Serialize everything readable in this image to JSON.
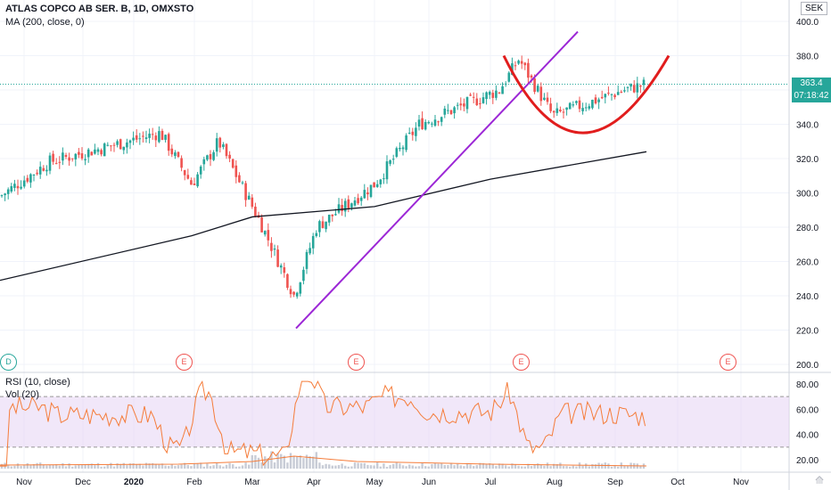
{
  "header": {
    "symbol": "ATLAS COPCO AB SER. B, 1D, OMXSTO",
    "indicator_ma": "MA (200, close, 0)",
    "indicator_rsi": "RSI (10, close)",
    "indicator_vol": "Vol (20)",
    "currency": "SEK"
  },
  "price_tags": {
    "last": "363.4",
    "countdown": "07:18:42"
  },
  "events": [
    {
      "letter": "D",
      "color": "#26a69a",
      "date_idx": 0
    },
    {
      "letter": "E",
      "color": "#ef5350",
      "date_idx": 1
    },
    {
      "letter": "E",
      "color": "#ef5350",
      "date_idx": 2
    },
    {
      "letter": "E",
      "color": "#ef5350",
      "date_idx": 3
    },
    {
      "letter": "E",
      "color": "#ef5350",
      "date_idx": 4
    }
  ],
  "colors": {
    "up": "#26a69a",
    "down": "#ef5350",
    "ma": "#131722",
    "rsi": "#f57c3a",
    "rsi_band": "#e8d7f5",
    "trend": "#9c27d6",
    "cup": "#e11d1d",
    "grid": "#f0f3fa"
  },
  "chart_data": [
    {
      "type": "candlestick",
      "title": "ATLAS COPCO AB SER. B, 1D, OMXSTO",
      "x_ticks": [
        "Nov",
        "Dec",
        "2020",
        "Feb",
        "Mar",
        "Apr",
        "May",
        "Jun",
        "Jul",
        "Aug",
        "Sep",
        "Oct",
        "Nov"
      ],
      "y_ticks": [
        "200.0",
        "220.0",
        "240.0",
        "260.0",
        "280.0",
        "300.0",
        "320.0",
        "340.0",
        "360.0",
        "380.0",
        "400.0"
      ],
      "ylim": [
        200,
        400
      ],
      "last_price": 363.4,
      "approx_close_path": [
        {
          "month": "Nov",
          "value": 298
        },
        {
          "month": "Dec",
          "value": 318
        },
        {
          "month": "2020",
          "value": 335
        },
        {
          "month": "Feb",
          "value": 305
        },
        {
          "month": "Feb",
          "value": 330
        },
        {
          "month": "Mar",
          "value": 285
        },
        {
          "month": "Mar",
          "value": 240
        },
        {
          "month": "Apr",
          "value": 280
        },
        {
          "month": "May",
          "value": 305
        },
        {
          "month": "Jun",
          "value": 340
        },
        {
          "month": "Jul",
          "value": 360
        },
        {
          "month": "Jul",
          "value": 378
        },
        {
          "month": "Aug",
          "value": 345
        },
        {
          "month": "Sep",
          "value": 360
        },
        {
          "month": "Sep",
          "value": 363.4
        }
      ],
      "ma200_path": [
        {
          "month": "Nov",
          "value": 249
        },
        {
          "month": "Feb",
          "value": 275
        },
        {
          "month": "Mar",
          "value": 286
        },
        {
          "month": "May",
          "value": 292
        },
        {
          "month": "Jul",
          "value": 308
        },
        {
          "month": "Sep",
          "value": 324
        }
      ],
      "trendline": [
        {
          "month": "Mar",
          "value": 221
        },
        {
          "month": "Sep",
          "value": 394
        }
      ],
      "cup": [
        {
          "month": "Jul",
          "value": 380
        },
        {
          "month": "Aug",
          "value": 330
        },
        {
          "month": "Sep",
          "value": 380
        }
      ]
    },
    {
      "type": "line",
      "title": "RSI (10, close)",
      "y_ticks": [
        "20.00",
        "40.00",
        "60.00",
        "80.00"
      ],
      "ylim": [
        10,
        90
      ],
      "band": [
        30,
        70
      ],
      "last_value": 60
    }
  ]
}
